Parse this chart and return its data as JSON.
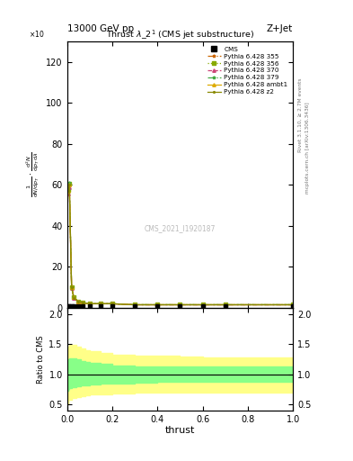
{
  "title_top": "13000 GeV pp",
  "title_right": "Z+Jet",
  "plot_title": "Thrust $\\lambda$_2$^1$ (CMS jet substructure)",
  "watermark": "CMS_2021_I1920187",
  "right_label_top": "Rivet 3.1.10, ≥ 2.7M events",
  "right_label_bottom": "mcplots.cern.ch [arXiv:1306.3436]",
  "ylabel_main": "1 / mathrm d N / mathrm d p_T mathrm d^2 N / mathrm d p_T mathrm d lambda",
  "ylabel_ratio": "Ratio to CMS",
  "xlabel": "thrust",
  "ylim_main": [
    0,
    130
  ],
  "ylim_ratio": [
    0.4,
    2.1
  ],
  "ratio_yticks": [
    0.5,
    1.0,
    1.5,
    2.0
  ],
  "main_x": [
    0.005,
    0.01,
    0.02,
    0.03,
    0.05,
    0.07,
    0.1,
    0.15,
    0.2,
    0.3,
    0.4,
    0.5,
    0.6,
    0.7,
    1.0
  ],
  "main_y": [
    57,
    60,
    10,
    5,
    3,
    2.5,
    2.0,
    2.0,
    2.0,
    1.5,
    1.5,
    1.5,
    1.5,
    1.5,
    1.5
  ],
  "cms_x": [
    0.005,
    0.01,
    0.02,
    0.03,
    0.05,
    0.07,
    0.1,
    0.15,
    0.2,
    0.3,
    0.4,
    0.5,
    0.6,
    0.7,
    1.0
  ],
  "cms_y": [
    0.8,
    0.8,
    0.8,
    0.8,
    0.8,
    0.8,
    0.8,
    0.8,
    0.8,
    0.8,
    0.8,
    0.8,
    0.8,
    0.8,
    0.8
  ],
  "series": [
    {
      "label": "Pythia 6.428 355",
      "color": "#cc6600",
      "marker": "*",
      "linestyle": "-."
    },
    {
      "label": "Pythia 6.428 356",
      "color": "#88aa00",
      "marker": "s",
      "linestyle": ":"
    },
    {
      "label": "Pythia 6.428 370",
      "color": "#cc4477",
      "marker": "^",
      "linestyle": "--"
    },
    {
      "label": "Pythia 6.428 379",
      "color": "#44aa44",
      "marker": "*",
      "linestyle": "-."
    },
    {
      "label": "Pythia 6.428 ambt1",
      "color": "#ddaa00",
      "marker": "^",
      "linestyle": "-"
    },
    {
      "label": "Pythia 6.428 z2",
      "color": "#888800",
      "marker": ".",
      "linestyle": "-"
    }
  ],
  "offsets": [
    0.99,
    1.01,
    0.98,
    1.02,
    1.005,
    1.0
  ],
  "ratio_x": [
    0.005,
    0.01,
    0.02,
    0.04,
    0.06,
    0.08,
    0.1,
    0.15,
    0.2,
    0.3,
    0.4,
    0.5,
    0.6,
    0.7,
    0.8,
    0.9,
    1.0
  ],
  "ratio_y_upper": [
    1.35,
    1.45,
    1.48,
    1.48,
    1.45,
    1.42,
    1.4,
    1.38,
    1.35,
    1.32,
    1.31,
    1.3,
    1.29,
    1.28,
    1.28,
    1.28,
    1.28
  ],
  "ratio_y_lower": [
    0.5,
    0.57,
    0.58,
    0.6,
    0.62,
    0.64,
    0.65,
    0.66,
    0.67,
    0.68,
    0.69,
    0.69,
    0.7,
    0.7,
    0.7,
    0.7,
    0.7
  ],
  "ratio_g_upper": [
    1.18,
    1.24,
    1.26,
    1.26,
    1.24,
    1.22,
    1.2,
    1.18,
    1.17,
    1.14,
    1.13,
    1.13,
    1.12,
    1.12,
    1.12,
    1.12,
    1.12
  ],
  "ratio_g_lower": [
    0.72,
    0.76,
    0.77,
    0.79,
    0.8,
    0.81,
    0.82,
    0.83,
    0.84,
    0.85,
    0.86,
    0.87,
    0.87,
    0.87,
    0.87,
    0.87,
    0.87
  ],
  "fig_width": 3.93,
  "fig_height": 5.12,
  "dpi": 100
}
